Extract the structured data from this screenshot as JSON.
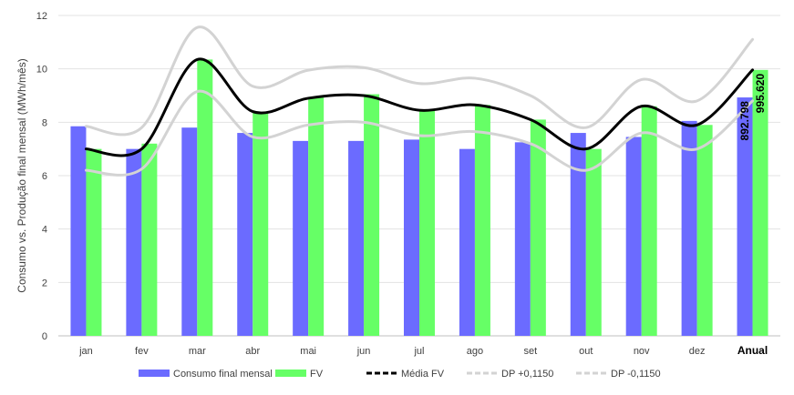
{
  "chart_data": {
    "type": "bar",
    "ylabel": "Consumo vs. Produção final mensal (MWh/mês)",
    "ylim": [
      0,
      12
    ],
    "yticks": [
      0,
      2,
      4,
      6,
      8,
      10,
      12
    ],
    "grid": true,
    "legend_position": "bottom",
    "categories": [
      "jan",
      "fev",
      "mar",
      "abr",
      "mai",
      "jun",
      "jul",
      "ago",
      "set",
      "out",
      "nov",
      "dez",
      "Anual"
    ],
    "series": [
      {
        "name": "Consumo final mensal",
        "kind": "bar",
        "color": "#6b6bff",
        "values": [
          7.85,
          7.0,
          7.8,
          7.6,
          7.3,
          7.3,
          7.35,
          7.0,
          7.25,
          7.6,
          7.45,
          8.05,
          8.93
        ]
      },
      {
        "name": "FV",
        "kind": "bar",
        "color": "#66ff66",
        "values": [
          7.0,
          7.2,
          10.35,
          8.4,
          8.95,
          9.05,
          8.45,
          8.65,
          8.1,
          7.0,
          8.6,
          7.9,
          9.96
        ]
      },
      {
        "name": "Média FV",
        "kind": "line",
        "color": "#000000",
        "values": [
          7.0,
          7.0,
          10.35,
          8.4,
          8.9,
          9.0,
          8.45,
          8.65,
          8.1,
          7.0,
          8.6,
          7.9,
          9.96
        ]
      },
      {
        "name": "DP +0,1150",
        "kind": "line",
        "color": "#d3d3d3",
        "values": [
          7.85,
          7.8,
          11.55,
          9.35,
          9.95,
          10.05,
          9.45,
          9.65,
          9.0,
          7.8,
          9.6,
          8.8,
          11.1
        ]
      },
      {
        "name": "DP -0,1150",
        "kind": "line",
        "color": "#d3d3d3",
        "values": [
          6.2,
          6.25,
          9.15,
          7.45,
          7.9,
          8.0,
          7.5,
          7.65,
          7.2,
          6.2,
          7.6,
          7.0,
          8.8
        ]
      }
    ],
    "data_labels": [
      "892.798",
      "995.620"
    ]
  }
}
